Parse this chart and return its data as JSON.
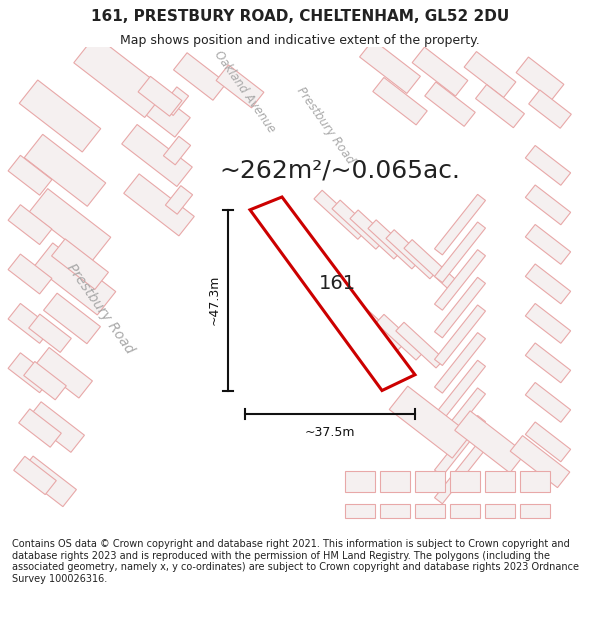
{
  "title": "161, PRESTBURY ROAD, CHELTENHAM, GL52 2DU",
  "subtitle": "Map shows position and indicative extent of the property.",
  "area_text": "~262m²/~0.065ac.",
  "dim_vertical": "~47.3m",
  "dim_horizontal": "~37.5m",
  "label_161": "161",
  "footer": "Contains OS data © Crown copyright and database right 2021. This information is subject to Crown copyright and database rights 2023 and is reproduced with the permission of HM Land Registry. The polygons (including the associated geometry, namely x, y co-ordinates) are subject to Crown copyright and database rights 2023 Ordnance Survey 100026316.",
  "map_bg": "#ffffff",
  "building_edge": "#e8a8a8",
  "building_fill": "#f5f0f0",
  "road_color": "#dddddd",
  "highlight_color": "#cc0000",
  "text_color": "#222222",
  "street_label_color": "#aaaaaa",
  "dim_color": "#111111",
  "title_fontsize": 11,
  "subtitle_fontsize": 9,
  "area_fontsize": 18,
  "footer_fontsize": 7.0
}
